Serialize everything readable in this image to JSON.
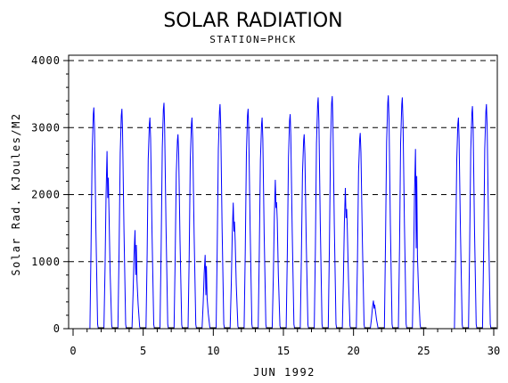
{
  "chart_data": {
    "type": "line",
    "title": "SOLAR RADIATION",
    "subtitle": "STATION=PHCK",
    "xlabel": "JUN 1992",
    "ylabel": "Solar Rad. KJoules/M2",
    "xlim": [
      0,
      30
    ],
    "ylim": [
      0,
      4000
    ],
    "x_ticks": [
      0,
      5,
      10,
      15,
      20,
      25,
      30
    ],
    "y_ticks": [
      0,
      1000,
      2000,
      3000,
      4000
    ],
    "grid": "horizontal dashed",
    "legend": "none",
    "series_color": "#0000ff",
    "baseline_color": "#000000",
    "daily_series": [
      {
        "day": 1,
        "peaks": [
          3300
        ]
      },
      {
        "day": 2,
        "peaks": [
          2650,
          1950
        ]
      },
      {
        "day": 3,
        "peaks": [
          3280
        ]
      },
      {
        "day": 4,
        "peaks": [
          1470,
          800
        ]
      },
      {
        "day": 5,
        "peaks": [
          3150
        ]
      },
      {
        "day": 6,
        "peaks": [
          3370
        ]
      },
      {
        "day": 7,
        "peaks": [
          2900
        ]
      },
      {
        "day": 8,
        "peaks": [
          3150
        ]
      },
      {
        "day": 9,
        "peaks": [
          1100,
          500
        ]
      },
      {
        "day": 10,
        "peaks": [
          3350
        ]
      },
      {
        "day": 11,
        "peaks": [
          1880,
          1450
        ]
      },
      {
        "day": 12,
        "peaks": [
          3280
        ]
      },
      {
        "day": 13,
        "peaks": [
          3150
        ]
      },
      {
        "day": 14,
        "peaks": [
          2220,
          1800
        ]
      },
      {
        "day": 15,
        "peaks": [
          3200
        ]
      },
      {
        "day": 16,
        "peaks": [
          2900
        ]
      },
      {
        "day": 17,
        "peaks": [
          3450
        ]
      },
      {
        "day": 18,
        "peaks": [
          3470
        ]
      },
      {
        "day": 19,
        "peaks": [
          2100,
          1650
        ]
      },
      {
        "day": 20,
        "peaks": [
          2920
        ]
      },
      {
        "day": 21,
        "peaks": [
          420,
          300
        ]
      },
      {
        "day": 22,
        "peaks": [
          3480
        ]
      },
      {
        "day": 23,
        "peaks": [
          3450
        ]
      },
      {
        "day": 24,
        "peaks": [
          2680,
          1200
        ]
      },
      {
        "day": 25,
        "peaks": [
          0
        ]
      },
      {
        "day": 26,
        "peaks": [
          0
        ]
      },
      {
        "day": 27,
        "peaks": [
          3150
        ]
      },
      {
        "day": 28,
        "peaks": [
          3320
        ]
      },
      {
        "day": 29,
        "peaks": [
          3350
        ]
      }
    ]
  }
}
